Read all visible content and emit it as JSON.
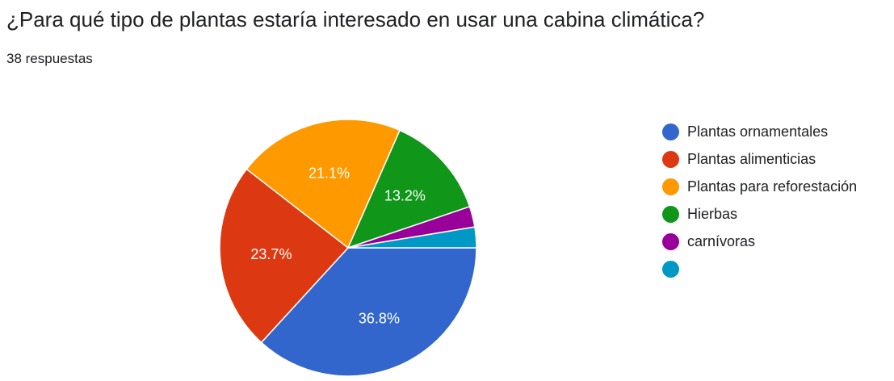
{
  "question": {
    "title": "¿Para qué tipo de plantas estaría interesado en usar una cabina climática?",
    "response_count": "38 respuestas"
  },
  "chart_data": {
    "type": "pie",
    "slices": [
      {
        "name": "Plantas ornamentales",
        "value": 36.8,
        "label": "36.8%",
        "color": "#3366cc"
      },
      {
        "name": "Plantas alimenticias",
        "value": 23.7,
        "label": "23.7%",
        "color": "#dc3912"
      },
      {
        "name": "Plantas para reforestación",
        "value": 21.1,
        "label": "21.1%",
        "color": "#ff9900"
      },
      {
        "name": "Hierbas",
        "value": 13.2,
        "label": "13.2%",
        "color": "#109618"
      },
      {
        "name": "carnívoras",
        "value": 2.6,
        "label": "",
        "color": "#990099"
      },
      {
        "name": "",
        "value": 2.6,
        "label": "",
        "color": "#0099c6"
      }
    ],
    "legend_position": "right"
  }
}
